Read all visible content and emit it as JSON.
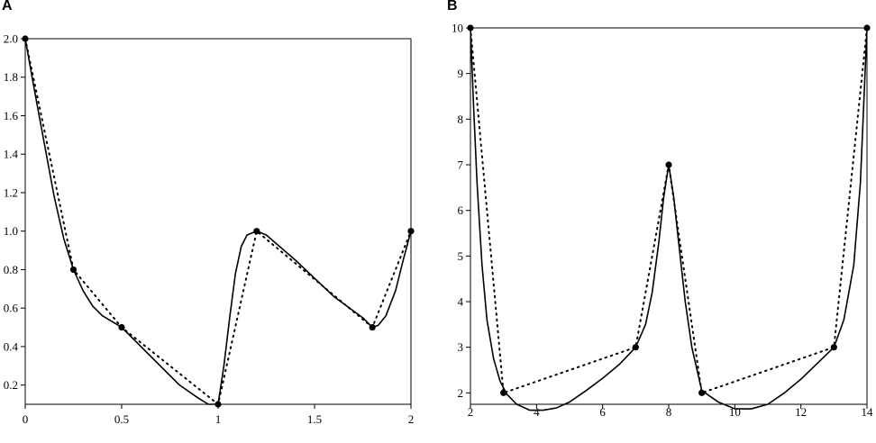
{
  "chart_data": [
    {
      "panel": "A",
      "type": "line",
      "title": "",
      "xlabel": "",
      "ylabel": "",
      "xlim": [
        0,
        2
      ],
      "ylim": [
        0.1,
        2.0
      ],
      "xticks": [
        0,
        0.5,
        1,
        1.5,
        2
      ],
      "xtick_labels": [
        "0",
        "0.5",
        "1",
        "1.5",
        "2"
      ],
      "yticks": [
        0.2,
        0.4,
        0.6,
        0.8,
        1.0,
        1.2,
        1.4,
        1.6,
        1.8,
        2.0
      ],
      "ytick_labels": [
        "0.2",
        "0.4",
        "0.6",
        "0.8",
        "1.0",
        "1.2",
        "1.4",
        "1.6",
        "1.8",
        "2.0"
      ],
      "grid": false,
      "legend": "none",
      "points": {
        "x": [
          0,
          0.25,
          0.5,
          1.0,
          1.2,
          1.8,
          2.0
        ],
        "y": [
          2.0,
          0.8,
          0.5,
          0.1,
          1.0,
          0.5,
          1.0
        ]
      },
      "smooth_curve": {
        "x": [
          0,
          0.05,
          0.1,
          0.15,
          0.2,
          0.25,
          0.3,
          0.35,
          0.4,
          0.45,
          0.5,
          0.6,
          0.7,
          0.8,
          0.9,
          0.95,
          1.0,
          1.03,
          1.06,
          1.09,
          1.12,
          1.15,
          1.2,
          1.25,
          1.4,
          1.6,
          1.75,
          1.8,
          1.83,
          1.87,
          1.92,
          1.96,
          2.0
        ],
        "y": [
          2.0,
          1.72,
          1.45,
          1.18,
          0.96,
          0.8,
          0.69,
          0.61,
          0.56,
          0.53,
          0.5,
          0.4,
          0.3,
          0.2,
          0.13,
          0.1,
          0.1,
          0.3,
          0.55,
          0.78,
          0.92,
          0.98,
          1.0,
          0.98,
          0.85,
          0.66,
          0.55,
          0.5,
          0.51,
          0.56,
          0.69,
          0.85,
          1.0
        ]
      }
    },
    {
      "panel": "B",
      "type": "line",
      "title": "",
      "xlabel": "",
      "ylabel": "",
      "xlim": [
        2,
        14
      ],
      "ylim": [
        1.75,
        10
      ],
      "xticks": [
        2,
        4,
        6,
        8,
        10,
        12,
        14
      ],
      "xtick_labels": [
        "2",
        "4",
        "6",
        "8",
        "10",
        "12",
        "14"
      ],
      "yticks": [
        2,
        3,
        4,
        5,
        6,
        7,
        8,
        9,
        10
      ],
      "ytick_labels": [
        "2",
        "3",
        "4",
        "5",
        "6",
        "7",
        "8",
        "9",
        "10"
      ],
      "grid": false,
      "legend": "none",
      "points": {
        "x": [
          2,
          3,
          7,
          8,
          9,
          13,
          14
        ],
        "y": [
          10,
          2,
          3,
          7,
          2,
          3,
          10
        ]
      },
      "smooth_curve": {
        "x": [
          2,
          2.1,
          2.2,
          2.35,
          2.5,
          2.7,
          2.9,
          3.1,
          3.4,
          3.8,
          4.2,
          4.6,
          5.0,
          5.5,
          6.0,
          6.5,
          7.0,
          7.3,
          7.5,
          7.7,
          7.85,
          8.0,
          8.15,
          8.3,
          8.5,
          8.7,
          9.0,
          9.5,
          10.0,
          10.5,
          11.0,
          11.5,
          12.0,
          12.5,
          13.0,
          13.3,
          13.6,
          13.8,
          14.0
        ],
        "y": [
          10,
          8.2,
          6.6,
          4.8,
          3.6,
          2.75,
          2.25,
          1.97,
          1.75,
          1.62,
          1.62,
          1.67,
          1.8,
          2.05,
          2.32,
          2.62,
          3.0,
          3.5,
          4.2,
          5.3,
          6.3,
          7.0,
          6.3,
          5.3,
          4.0,
          3.0,
          2.05,
          1.8,
          1.65,
          1.65,
          1.75,
          2.0,
          2.3,
          2.65,
          3.0,
          3.6,
          4.8,
          6.6,
          10.0
        ]
      }
    }
  ]
}
